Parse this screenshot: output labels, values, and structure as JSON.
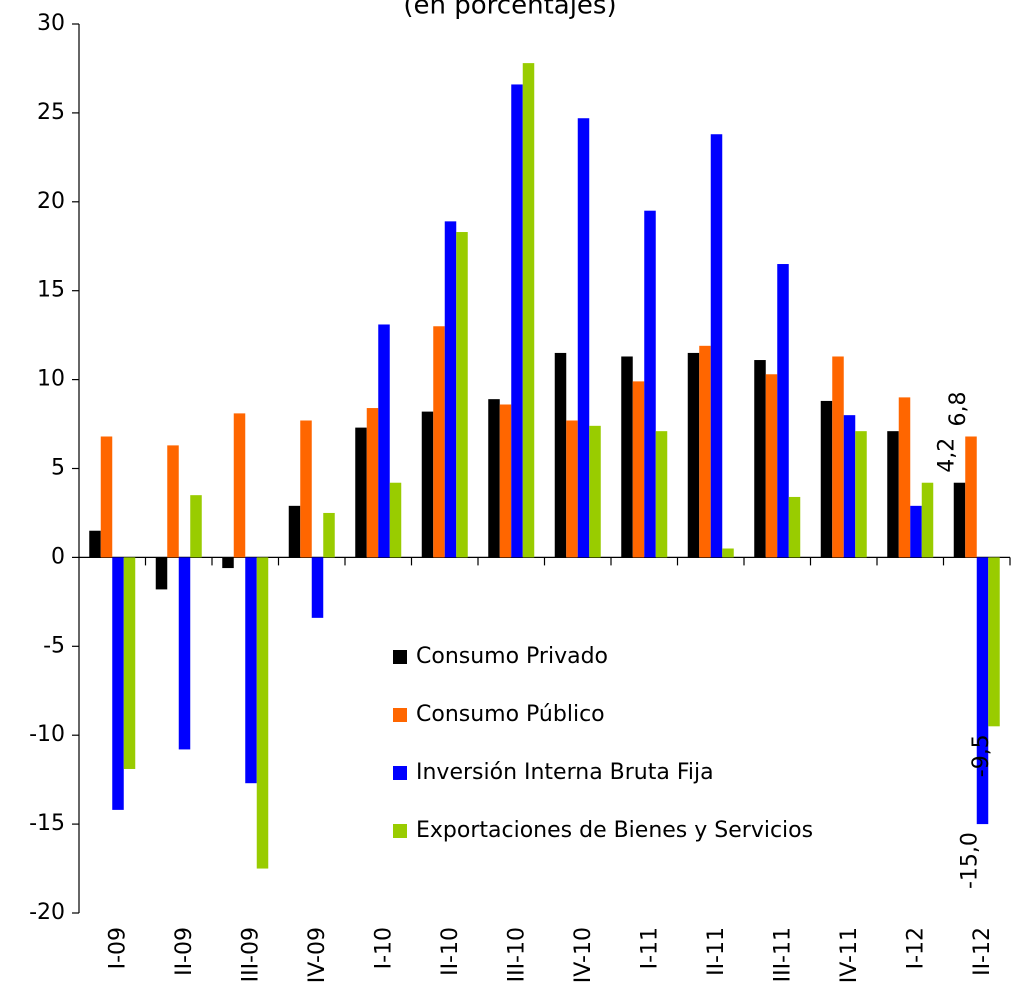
{
  "chart_data": {
    "type": "bar",
    "subtitle": "(en porcentajes)",
    "categories": [
      "I-09",
      "II-09",
      "III-09",
      "IV-09",
      "I-10",
      "II-10",
      "III-10",
      "IV-10",
      "I-11",
      "II-11",
      "III-11",
      "IV-11",
      "I-12",
      "II-12"
    ],
    "series": [
      {
        "name": "Consumo Privado",
        "color": "#000000",
        "values": [
          1.5,
          -1.8,
          -0.6,
          2.9,
          7.3,
          8.2,
          8.9,
          11.5,
          11.3,
          11.5,
          11.1,
          8.8,
          7.1,
          4.2
        ],
        "value_labels": [
          null,
          null,
          null,
          null,
          null,
          null,
          null,
          null,
          null,
          null,
          null,
          null,
          null,
          "4,2"
        ]
      },
      {
        "name": "Consumo Público",
        "color": "#ff6600",
        "values": [
          6.8,
          6.3,
          8.1,
          7.7,
          8.4,
          13.0,
          8.6,
          7.7,
          9.9,
          11.9,
          10.3,
          11.3,
          9.0,
          6.8
        ],
        "value_labels": [
          null,
          null,
          null,
          null,
          null,
          null,
          null,
          null,
          null,
          null,
          null,
          null,
          null,
          "6,8"
        ]
      },
      {
        "name": "Inversión Interna Bruta Fija",
        "color": "#0000ff",
        "values": [
          -14.2,
          -10.8,
          -12.7,
          -3.4,
          13.1,
          18.9,
          26.6,
          24.7,
          19.5,
          23.8,
          16.5,
          8.0,
          2.9,
          -15.0
        ],
        "value_labels": [
          null,
          null,
          null,
          null,
          null,
          null,
          null,
          null,
          null,
          null,
          null,
          null,
          null,
          "-15,0"
        ]
      },
      {
        "name": "Exportaciones de Bienes y Servicios",
        "color": "#99cc00",
        "values": [
          -11.9,
          3.5,
          -17.5,
          2.5,
          4.2,
          18.3,
          27.8,
          7.4,
          7.1,
          0.5,
          3.4,
          7.1,
          4.2,
          -9.5
        ],
        "value_labels": [
          null,
          null,
          null,
          null,
          null,
          null,
          null,
          null,
          null,
          null,
          null,
          null,
          null,
          "-9,5"
        ]
      }
    ],
    "ylim": [
      -20,
      30
    ],
    "yticks": [
      -20,
      -15,
      -10,
      -5,
      0,
      5,
      10,
      15,
      20,
      25,
      30
    ],
    "grid": false,
    "legend": "center"
  }
}
